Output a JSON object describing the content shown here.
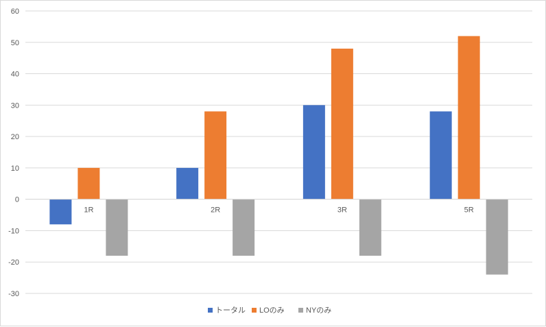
{
  "chart_data": {
    "type": "bar",
    "categories": [
      "1R",
      "2R",
      "3R",
      "5R"
    ],
    "series": [
      {
        "name": "トータル",
        "color": "#4472c4",
        "values": [
          -8,
          10,
          30,
          28
        ]
      },
      {
        "name": "LOのみ",
        "color": "#ed7d31",
        "values": [
          10,
          28,
          48,
          52
        ]
      },
      {
        "name": "NYのみ",
        "color": "#a5a5a5",
        "values": [
          -18,
          -18,
          -18,
          -24
        ]
      }
    ],
    "ylim": [
      -30,
      60
    ],
    "yticks": [
      -30,
      -20,
      -10,
      0,
      10,
      20,
      30,
      40,
      50,
      60
    ],
    "grid": true,
    "legend_position": "bottom",
    "title": "",
    "xlabel": "",
    "ylabel": ""
  }
}
